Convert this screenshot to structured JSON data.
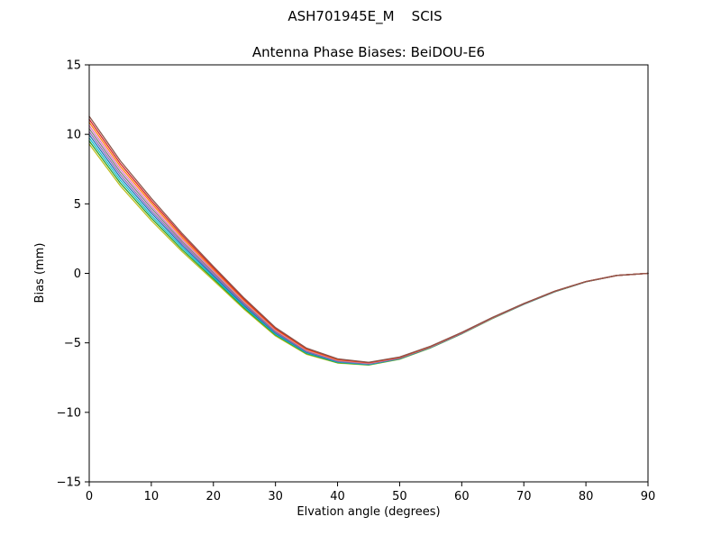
{
  "figure": {
    "title": "ASH701945E_M    SCIS",
    "subtitle": "Antenna Phase Biases: BeiDOU-E6"
  },
  "chart_data": {
    "type": "line",
    "title": "ASH701945E_M    SCIS",
    "subtitle": "Antenna Phase Biases: BeiDOU-E6",
    "xlabel": "Elvation angle (degrees)",
    "ylabel": "Bias (mm)",
    "xlim": [
      0,
      90
    ],
    "ylim": [
      -15,
      15
    ],
    "xticks": [
      0,
      10,
      20,
      30,
      40,
      50,
      60,
      70,
      80,
      90
    ],
    "yticks": [
      -15,
      -10,
      -5,
      0,
      5,
      10,
      15
    ],
    "grid": false,
    "legend_position": "none",
    "axes_frame_color": "#000000",
    "background_color": "#ffffff",
    "x": [
      0,
      5,
      10,
      15,
      20,
      25,
      30,
      35,
      40,
      45,
      50,
      55,
      60,
      65,
      70,
      75,
      80,
      85,
      90
    ],
    "series": [
      {
        "name": "series-1",
        "color": "#bcbd22",
        "values": [
          9.3,
          6.3,
          3.8,
          1.55,
          -0.5,
          -2.6,
          -4.5,
          -5.82,
          -6.45,
          -6.6,
          -6.18,
          -5.36,
          -4.35,
          -3.24,
          -2.23,
          -1.32,
          -0.61,
          -0.15,
          0.0
        ]
      },
      {
        "name": "series-2",
        "color": "#2ca02c",
        "values": [
          9.52,
          6.5,
          3.98,
          1.69,
          -0.39,
          -2.51,
          -4.43,
          -5.77,
          -6.42,
          -6.58,
          -6.16,
          -5.35,
          -4.34,
          -3.23,
          -2.22,
          -1.32,
          -0.61,
          -0.15,
          0.0
        ]
      },
      {
        "name": "series-3",
        "color": "#17becf",
        "values": [
          9.74,
          6.7,
          4.15,
          1.84,
          -0.28,
          -2.42,
          -4.37,
          -5.72,
          -6.38,
          -6.56,
          -6.14,
          -5.33,
          -4.33,
          -3.22,
          -2.22,
          -1.31,
          -0.61,
          -0.15,
          0.0
        ]
      },
      {
        "name": "series-4",
        "color": "#1f77b4",
        "values": [
          9.97,
          6.9,
          4.34,
          1.99,
          -0.17,
          -2.33,
          -4.3,
          -5.67,
          -6.35,
          -6.53,
          -6.13,
          -5.32,
          -4.32,
          -3.21,
          -2.21,
          -1.31,
          -0.6,
          -0.15,
          0.0
        ]
      },
      {
        "name": "series-5",
        "color": "#9467bd",
        "values": [
          10.19,
          7.1,
          4.51,
          2.13,
          -0.06,
          -2.24,
          -4.23,
          -5.62,
          -6.32,
          -6.51,
          -6.11,
          -5.31,
          -4.31,
          -3.2,
          -2.2,
          -1.3,
          -0.6,
          -0.15,
          0.0
        ]
      },
      {
        "name": "series-6",
        "color": "#7f7f7f",
        "values": [
          10.41,
          7.3,
          4.69,
          2.27,
          0.06,
          -2.16,
          -4.17,
          -5.58,
          -6.28,
          -6.49,
          -6.09,
          -5.29,
          -4.29,
          -3.2,
          -2.2,
          -1.3,
          -0.6,
          -0.15,
          0.0
        ]
      },
      {
        "name": "series-7",
        "color": "#e377c2",
        "values": [
          10.63,
          7.5,
          4.86,
          2.41,
          0.17,
          -2.07,
          -4.1,
          -5.53,
          -6.25,
          -6.47,
          -6.07,
          -5.28,
          -4.28,
          -3.19,
          -2.19,
          -1.29,
          -0.59,
          -0.15,
          0.0
        ]
      },
      {
        "name": "series-8",
        "color": "#ff7f0e",
        "values": [
          10.86,
          7.7,
          5.05,
          2.56,
          0.28,
          -1.98,
          -4.03,
          -5.48,
          -6.22,
          -6.44,
          -6.06,
          -5.27,
          -4.27,
          -3.18,
          -2.18,
          -1.29,
          -0.59,
          -0.15,
          0.0
        ]
      },
      {
        "name": "series-9",
        "color": "#d62728",
        "values": [
          11.08,
          7.9,
          5.22,
          2.71,
          0.39,
          -1.89,
          -3.97,
          -5.43,
          -6.18,
          -6.42,
          -6.04,
          -5.25,
          -4.26,
          -3.17,
          -2.18,
          -1.28,
          -0.59,
          -0.15,
          0.0
        ]
      },
      {
        "name": "series-10",
        "color": "#8c564b",
        "values": [
          11.3,
          8.1,
          5.4,
          2.85,
          0.5,
          -1.8,
          -3.9,
          -5.38,
          -6.15,
          -6.4,
          -6.02,
          -5.24,
          -4.25,
          -3.16,
          -2.17,
          -1.28,
          -0.59,
          -0.15,
          0.0
        ]
      }
    ]
  }
}
